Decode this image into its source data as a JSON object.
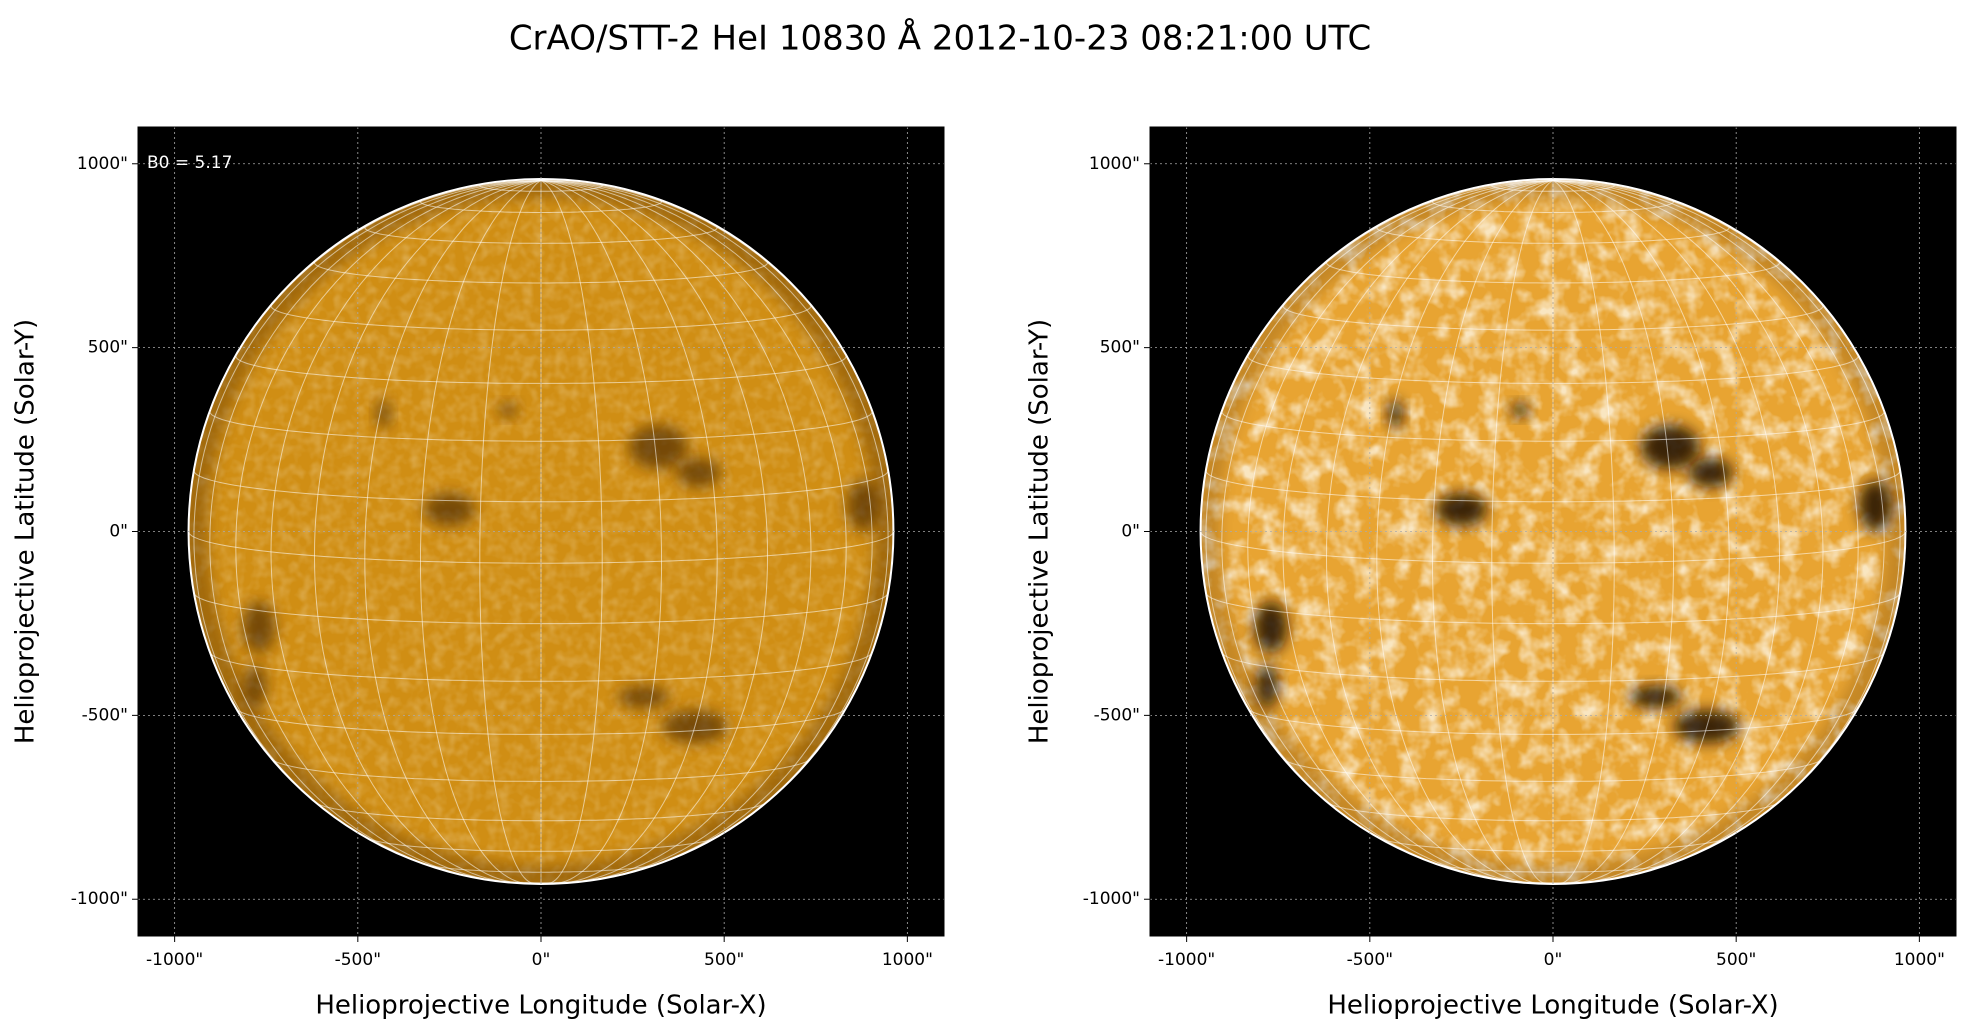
{
  "title": "CrAO/STT-2 HeI 10830 Å 2012-10-23 08:21:00 UTC",
  "chart_data": [
    {
      "type": "image",
      "annotation": "B0 = 5.17",
      "xlabel": "Helioprojective Longitude (Solar-X)",
      "ylabel": "Helioprojective Latitude (Solar-Y)",
      "xlim": [
        -1100,
        1100
      ],
      "ylim": [
        -1100,
        1100
      ],
      "xticks": [
        {
          "value": -1000,
          "label": "-1000\""
        },
        {
          "value": -500,
          "label": "-500\""
        },
        {
          "value": 0,
          "label": "0\""
        },
        {
          "value": 500,
          "label": "500\""
        },
        {
          "value": 1000,
          "label": "1000\""
        }
      ],
      "yticks": [
        {
          "value": -1000,
          "label": "-1000\""
        },
        {
          "value": -500,
          "label": "-500\""
        },
        {
          "value": 0,
          "label": "0\""
        },
        {
          "value": 500,
          "label": "500\""
        },
        {
          "value": 1000,
          "label": "1000\""
        }
      ],
      "radius": 962,
      "grid": true,
      "color": "#d08e14"
    },
    {
      "type": "image",
      "xlabel": "Helioprojective Longitude (Solar-X)",
      "ylabel": "Helioprojective Latitude (Solar-Y)",
      "xlim": [
        -1100,
        1100
      ],
      "ylim": [
        -1100,
        1100
      ],
      "xticks": [
        {
          "value": -1000,
          "label": "-1000\""
        },
        {
          "value": -500,
          "label": "-500\""
        },
        {
          "value": 0,
          "label": "0\""
        },
        {
          "value": 500,
          "label": "500\""
        },
        {
          "value": 1000,
          "label": "1000\""
        }
      ],
      "yticks": [
        {
          "value": -1000,
          "label": "-1000\""
        },
        {
          "value": -500,
          "label": "-500\""
        },
        {
          "value": 0,
          "label": "0\""
        },
        {
          "value": 500,
          "label": "500\""
        },
        {
          "value": 1000,
          "label": "1000\""
        }
      ],
      "radius": 962,
      "grid": true,
      "color": "#e8a432"
    }
  ]
}
